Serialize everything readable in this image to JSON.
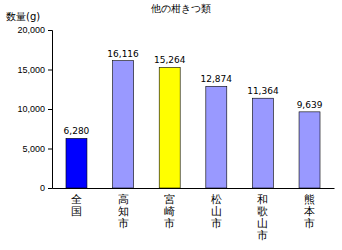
{
  "chart_data": {
    "type": "bar",
    "title": "他の柑きつ類",
    "y_label": "数量(g)",
    "categories": [
      "全国",
      "高知市",
      "宮崎市",
      "松山市",
      "和歌山市",
      "熊本市"
    ],
    "values": [
      6280,
      16116,
      15264,
      12874,
      11364,
      9639
    ],
    "value_labels": [
      "6,280",
      "16,116",
      "15,264",
      "12,874",
      "11,364",
      "9,639"
    ],
    "data_labels": true,
    "colors": [
      "#0000ff",
      "#9999ff",
      "#ffff00",
      "#9999ff",
      "#9999ff",
      "#9999ff"
    ],
    "ylim": [
      0,
      20000
    ],
    "yticks": [
      0,
      {
        "value": 5000,
        "label": "5,000"
      },
      {
        "value": 10000,
        "label": "10,000"
      },
      {
        "value": 15000,
        "label": "15,000"
      },
      {
        "value": 20000,
        "label": "20,000"
      }
    ],
    "grid": false
  }
}
